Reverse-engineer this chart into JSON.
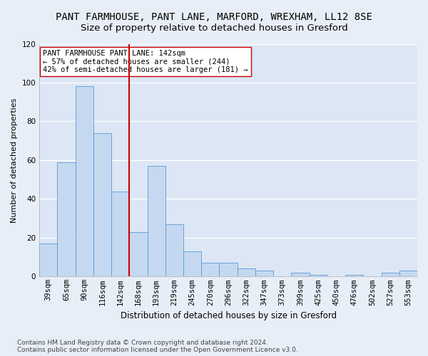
{
  "title": "PANT FARMHOUSE, PANT LANE, MARFORD, WREXHAM, LL12 8SE",
  "subtitle": "Size of property relative to detached houses in Gresford",
  "xlabel": "Distribution of detached houses by size in Gresford",
  "ylabel": "Number of detached properties",
  "categories": [
    "39sqm",
    "65sqm",
    "90sqm",
    "116sqm",
    "142sqm",
    "168sqm",
    "193sqm",
    "219sqm",
    "245sqm",
    "270sqm",
    "296sqm",
    "322sqm",
    "347sqm",
    "373sqm",
    "399sqm",
    "425sqm",
    "450sqm",
    "476sqm",
    "502sqm",
    "527sqm",
    "553sqm"
  ],
  "values": [
    17,
    59,
    98,
    74,
    44,
    23,
    57,
    27,
    13,
    7,
    7,
    4,
    3,
    0,
    2,
    1,
    0,
    1,
    0,
    2,
    3
  ],
  "bar_color": "#c5d8f0",
  "bar_edge_color": "#5b9bd5",
  "vline_x_index": 4,
  "vline_color": "#cc0000",
  "annotation_text": "PANT FARMHOUSE PANT LANE: 142sqm\n← 57% of detached houses are smaller (244)\n42% of semi-detached houses are larger (181) →",
  "annotation_box_color": "#ffffff",
  "annotation_box_edge_color": "#cc0000",
  "ylim": [
    0,
    120
  ],
  "yticks": [
    0,
    20,
    40,
    60,
    80,
    100,
    120
  ],
  "footer_text": "Contains HM Land Registry data © Crown copyright and database right 2024.\nContains public sector information licensed under the Open Government Licence v3.0.",
  "background_color": "#e8eef8",
  "plot_bg_color": "#dce6f5",
  "grid_color": "#ffffff",
  "title_fontsize": 10,
  "subtitle_fontsize": 9.5,
  "xlabel_fontsize": 8.5,
  "ylabel_fontsize": 8,
  "tick_fontsize": 7.5,
  "annotation_fontsize": 7.5,
  "footer_fontsize": 6.5
}
